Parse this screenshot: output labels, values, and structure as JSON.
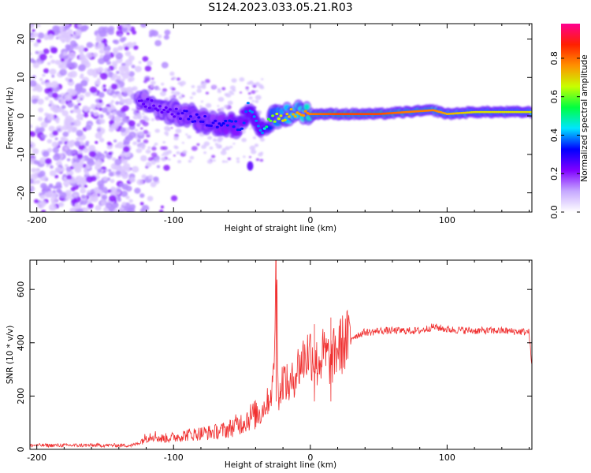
{
  "title": "S124.2023.033.05.21.R03",
  "chart_data": [
    {
      "type": "heatmap",
      "xlabel": "Height of straight line (km)",
      "ylabel": "Frequency (Hz)",
      "xlim": [
        -205,
        162
      ],
      "ylim": [
        -25,
        24
      ],
      "xticks": [
        -200,
        -100,
        0,
        100
      ],
      "yticks": [
        -20,
        -10,
        0,
        10,
        20
      ],
      "colorbar": {
        "label": "Normalized spectral amplitude",
        "range": [
          0,
          0.98
        ],
        "ticks": [
          0.0,
          0.2,
          0.4,
          0.6,
          0.8
        ],
        "tick_labels": [
          "0.0",
          "0.2",
          "0.4",
          "0.6",
          "0.8"
        ],
        "colormap": [
          "#ffffff",
          "#c6a8ff",
          "#8000ff",
          "#0000ff",
          "#00e5ff",
          "#00ff40",
          "#c8ff00",
          "#ff9000",
          "#ff2000",
          "#ff0090"
        ]
      },
      "ridge": {
        "x": [
          -125,
          -110,
          -100,
          -90,
          -80,
          -70,
          -60,
          -50,
          -45,
          -40,
          -35,
          -30,
          -20,
          -10,
          0,
          20,
          50,
          70,
          90,
          100,
          120,
          150,
          162
        ],
        "freq": [
          4,
          2,
          1,
          0,
          -1,
          -2,
          -2,
          -3,
          3,
          0,
          -4,
          -1,
          0,
          1,
          0.5,
          0.5,
          0.5,
          1,
          1.5,
          0.5,
          1,
          1,
          1
        ],
        "amplitude": [
          0.25,
          0.25,
          0.25,
          0.3,
          0.3,
          0.3,
          0.35,
          0.35,
          0.4,
          0.4,
          0.4,
          0.6,
          0.7,
          0.75,
          0.8,
          0.85,
          0.85,
          0.8,
          0.8,
          0.75,
          0.7,
          0.7,
          0.7
        ]
      }
    },
    {
      "type": "line",
      "xlabel": "Height of straight line (km)",
      "ylabel": "SNR (10 * v/v)",
      "xlim": [
        -205,
        162
      ],
      "ylim": [
        0,
        710
      ],
      "xticks": [
        -200,
        -100,
        0,
        100
      ],
      "yticks": [
        0,
        200,
        400,
        600
      ],
      "series": [
        {
          "color": "#f03030",
          "x": [
            -205,
            -190,
            -170,
            -150,
            -130,
            -125,
            -120,
            -115,
            -110,
            -100,
            -90,
            -80,
            -70,
            -60,
            -55,
            -50,
            -45,
            -40,
            -35,
            -30,
            -27,
            -25,
            -23,
            -20,
            -15,
            -10,
            -5,
            0,
            5,
            10,
            15,
            20,
            25,
            30,
            35,
            40,
            45,
            50,
            60,
            80,
            90,
            100,
            120,
            140,
            160,
            162
          ],
          "y": [
            15,
            15,
            15,
            15,
            15,
            25,
            45,
            55,
            40,
            45,
            55,
            60,
            65,
            75,
            90,
            100,
            120,
            130,
            150,
            190,
            250,
            710,
            180,
            270,
            230,
            300,
            340,
            370,
            320,
            360,
            330,
            380,
            400,
            420,
            430,
            440,
            440,
            445,
            445,
            445,
            460,
            450,
            445,
            445,
            440,
            300
          ]
        }
      ],
      "annotations_y_spikes": [
        {
          "x": -25,
          "y": 710
        },
        {
          "x": 3,
          "y": 470
        },
        {
          "x": 15,
          "y": 495
        }
      ]
    }
  ]
}
